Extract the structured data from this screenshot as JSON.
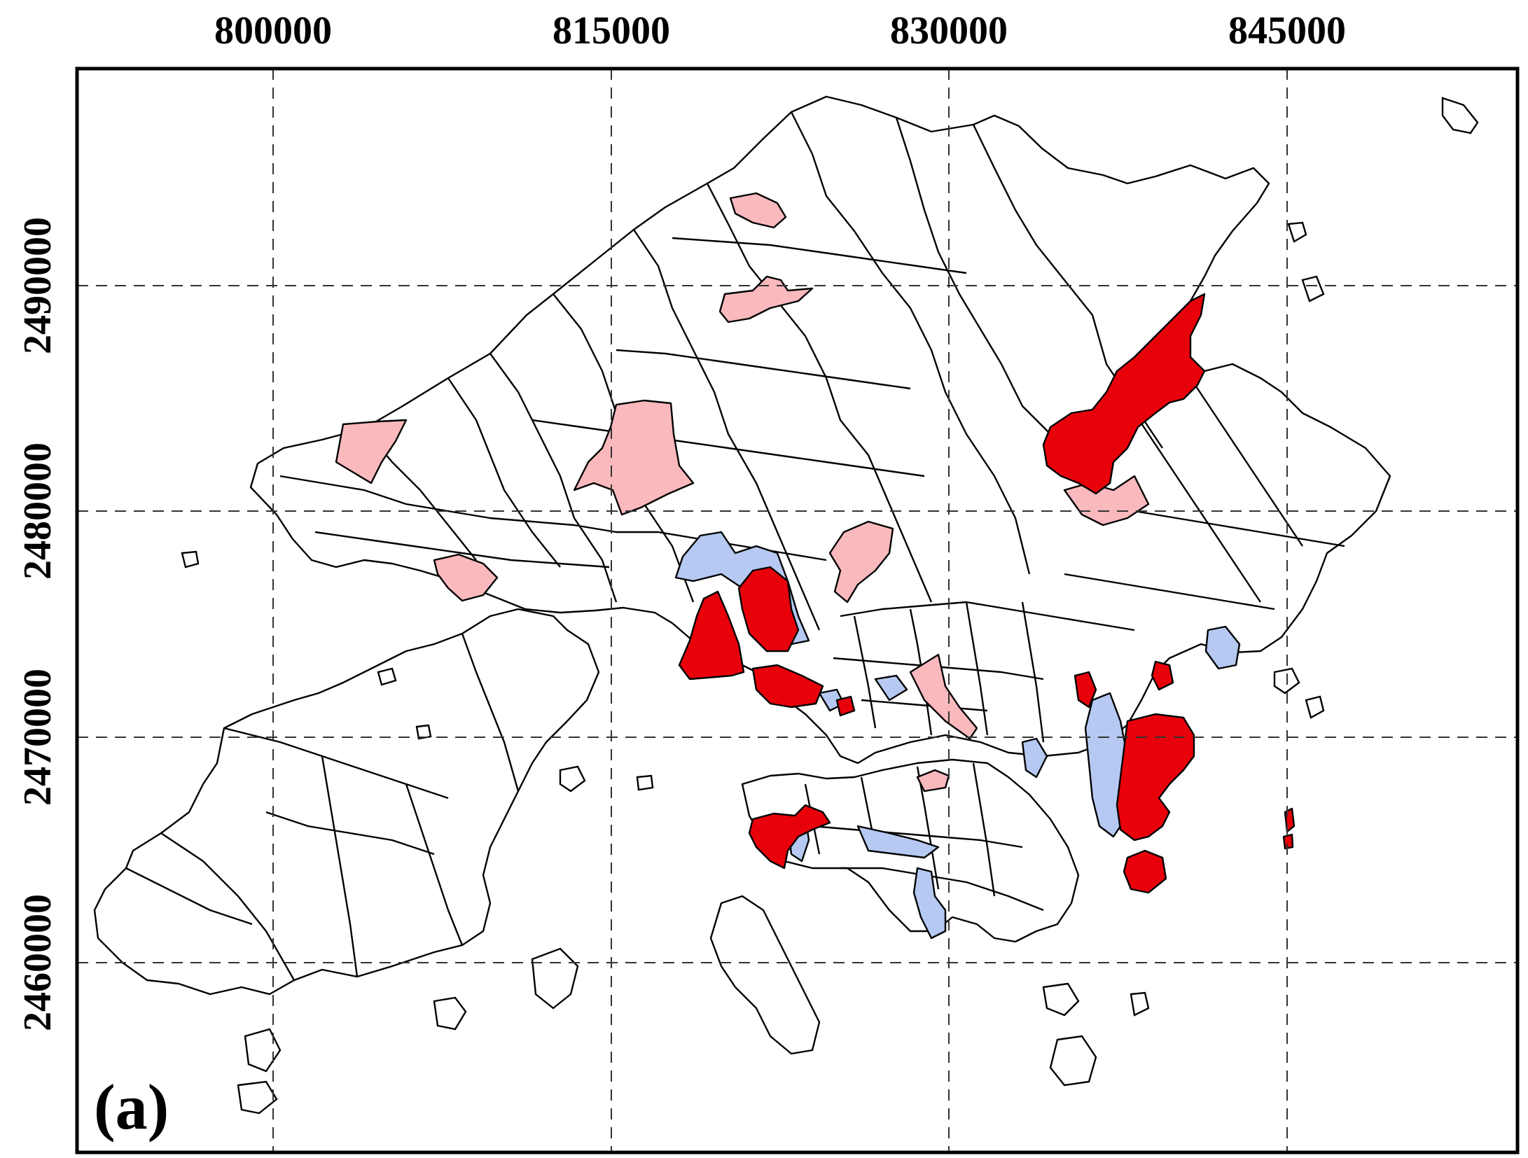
{
  "map": {
    "panel_label": "(a)",
    "x_ticks": [
      "800000",
      "815000",
      "830000",
      "845000"
    ],
    "y_ticks": [
      "2490000",
      "2480000",
      "2470000",
      "2460000"
    ],
    "colors": {
      "high": "#e8000b",
      "moderate": "#f9b9bd",
      "low": "#b5c9f2",
      "none": "#ffffff",
      "boundary": "#000000"
    }
  }
}
